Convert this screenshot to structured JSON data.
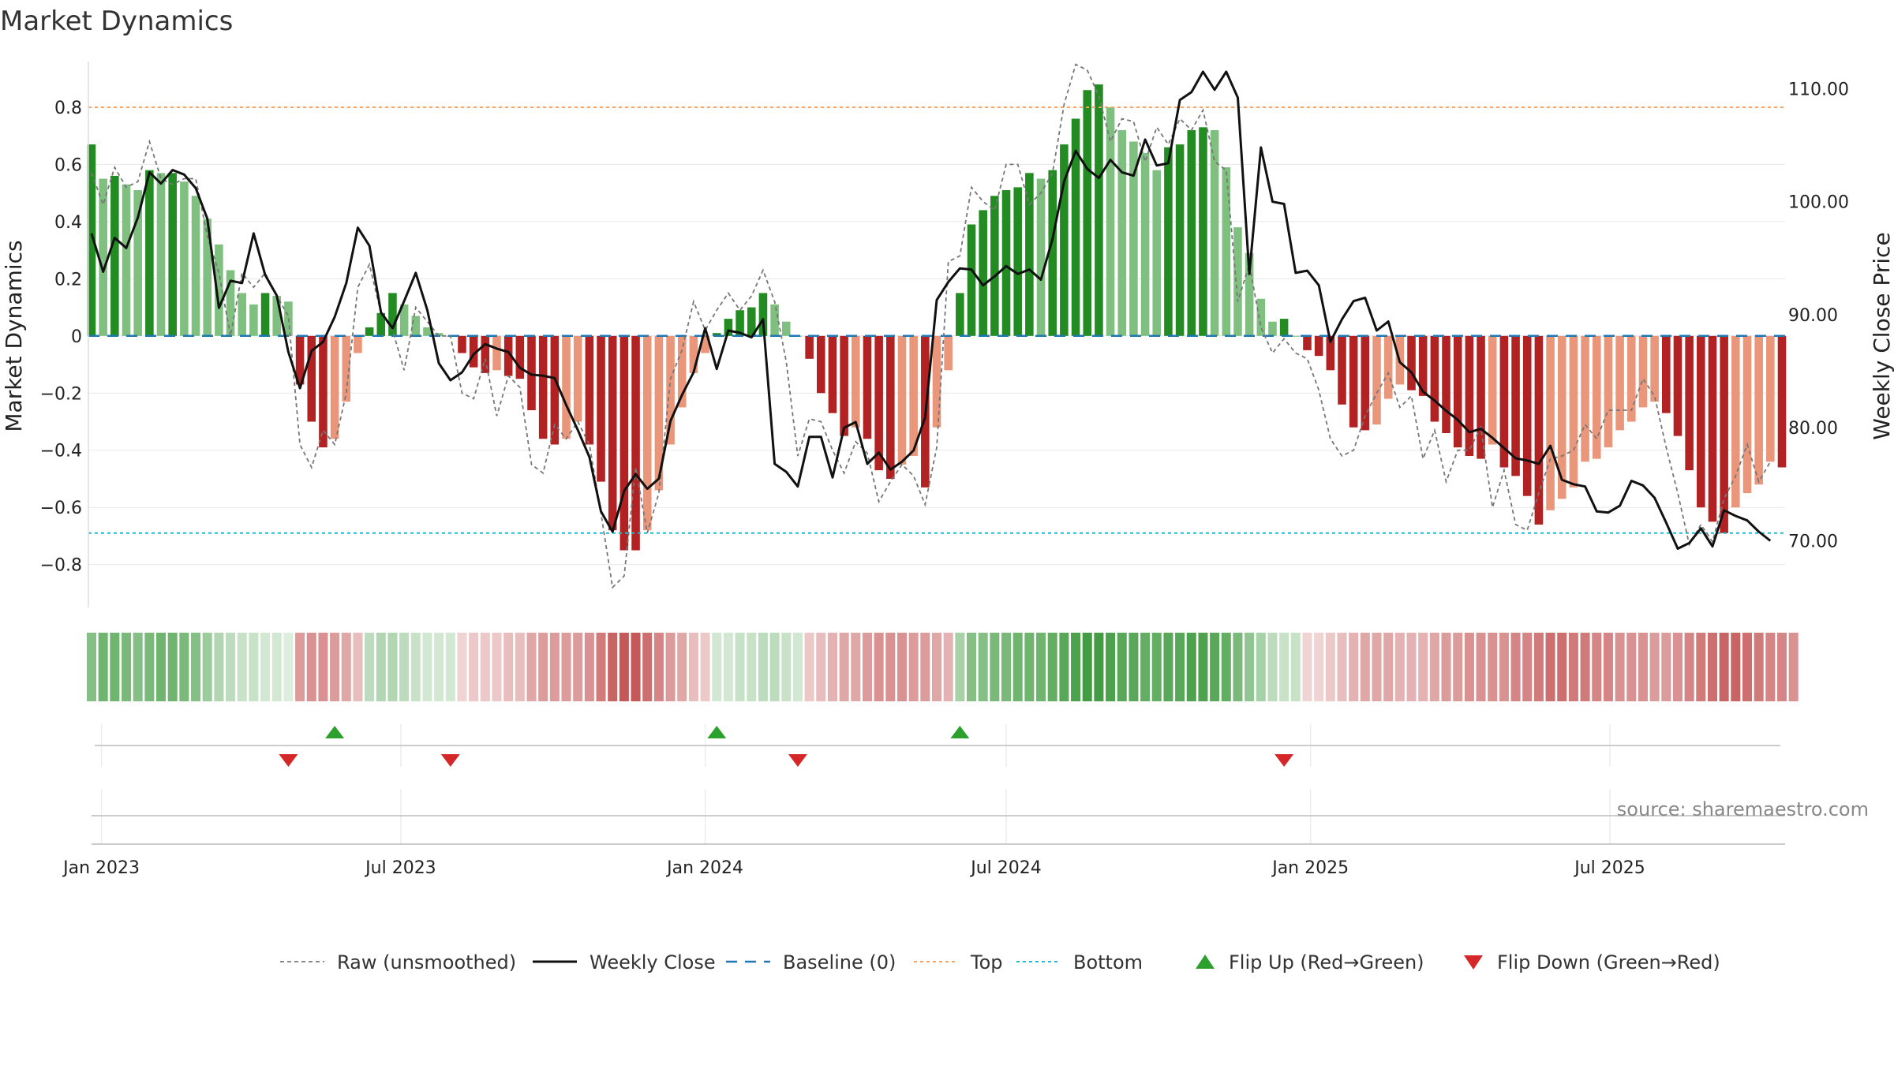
{
  "title": "Market Dynamics",
  "source": "source: sharemaestro.com",
  "colors": {
    "strong_green": "#228b22",
    "light_green": "#7fbf7f",
    "strong_red": "#b22222",
    "light_red": "#e9967a",
    "close_line": "#111111",
    "raw_line": "#777777",
    "baseline": "#1f77b4",
    "top": "#f4a460",
    "bottom": "#17becf",
    "flip_up": "#2ca02c",
    "flip_down": "#d62728"
  },
  "legend": [
    {
      "key": "raw",
      "label": "Raw (unsmoothed)",
      "icon": "dotted-line"
    },
    {
      "key": "close",
      "label": "Weekly Close",
      "icon": "solid-line"
    },
    {
      "key": "baseline",
      "label": "Baseline (0)",
      "icon": "dashed-line"
    },
    {
      "key": "top",
      "label": "Top",
      "icon": "dotted-line"
    },
    {
      "key": "bottom",
      "label": "Bottom",
      "icon": "dotted-line"
    },
    {
      "key": "flip_up",
      "label": "Flip Up (Red→Green)",
      "icon": "triangle-up-icon"
    },
    {
      "key": "flip_down",
      "label": "Flip Down (Green→Red)",
      "icon": "triangle-down-icon"
    }
  ],
  "chart_data": {
    "type": "bar",
    "title": "Market Dynamics",
    "ylabel": "Market Dynamics",
    "y2label": "Weekly Close Price",
    "ylim": [
      -0.95,
      0.96
    ],
    "y2lim": [
      64.1,
      112.4
    ],
    "yticks": [
      -0.8,
      -0.6,
      -0.4,
      -0.2,
      0,
      0.2,
      0.4,
      0.6,
      0.8
    ],
    "ytick_labels": [
      "−0.8",
      "−0.6",
      "−0.4",
      "−0.2",
      "0",
      "0.2",
      "0.4",
      "0.6",
      "0.8"
    ],
    "y2ticks": [
      70,
      80,
      90,
      100,
      110
    ],
    "y2tick_labels": [
      "70.00",
      "80.00",
      "90.00",
      "100.00",
      "110.00"
    ],
    "xticks": [
      "2023-01-01",
      "2023-07-01",
      "2024-01-01",
      "2024-07-01",
      "2025-01-01",
      "2025-07-01"
    ],
    "xtick_labels": [
      "Jan 2023",
      "Jul 2023",
      "Jan 2024",
      "Jul 2024",
      "Jan 2025",
      "Jul 2025"
    ],
    "x_start": "2022-12-26",
    "weeks": 147,
    "top_line": 0.8,
    "bottom_line": -0.69,
    "baseline": 0,
    "grid": true,
    "legend_position": "bottom",
    "momentum": [
      0.67,
      0.55,
      0.56,
      0.53,
      0.51,
      0.58,
      0.57,
      0.57,
      0.54,
      0.49,
      0.41,
      0.32,
      0.23,
      0.15,
      0.11,
      0.15,
      0.14,
      0.12,
      -0.17,
      -0.3,
      -0.39,
      -0.36,
      -0.23,
      -0.06,
      0.03,
      0.08,
      0.15,
      0.11,
      0.07,
      0.03,
      0.01,
      0.0,
      -0.06,
      -0.11,
      -0.13,
      -0.12,
      -0.14,
      -0.15,
      -0.26,
      -0.36,
      -0.38,
      -0.36,
      -0.3,
      -0.38,
      -0.51,
      -0.68,
      -0.75,
      -0.75,
      -0.68,
      -0.54,
      -0.38,
      -0.25,
      -0.13,
      -0.06,
      0.01,
      0.06,
      0.09,
      0.1,
      0.15,
      0.11,
      0.05,
      0.0,
      -0.08,
      -0.2,
      -0.27,
      -0.35,
      -0.32,
      -0.36,
      -0.47,
      -0.5,
      -0.45,
      -0.42,
      -0.53,
      -0.32,
      -0.12,
      0.15,
      0.39,
      0.44,
      0.49,
      0.51,
      0.52,
      0.57,
      0.55,
      0.58,
      0.67,
      0.76,
      0.86,
      0.88,
      0.8,
      0.72,
      0.68,
      0.64,
      0.58,
      0.66,
      0.67,
      0.72,
      0.73,
      0.72,
      0.59,
      0.38,
      0.29,
      0.13,
      0.05,
      0.06,
      0.0,
      -0.05,
      -0.07,
      -0.12,
      -0.24,
      -0.32,
      -0.33,
      -0.31,
      -0.22,
      -0.17,
      -0.19,
      -0.21,
      -0.3,
      -0.34,
      -0.39,
      -0.42,
      -0.43,
      -0.38,
      -0.46,
      -0.49,
      -0.56,
      -0.66,
      -0.61,
      -0.57,
      -0.53,
      -0.44,
      -0.43,
      -0.39,
      -0.33,
      -0.3,
      -0.25,
      -0.23,
      -0.27,
      -0.35,
      -0.47,
      -0.6,
      -0.65,
      -0.69,
      -0.6,
      -0.55,
      -0.52,
      -0.44,
      -0.46
    ],
    "raw": [
      0.57,
      0.46,
      0.59,
      0.52,
      0.54,
      0.68,
      0.55,
      0.53,
      0.55,
      0.55,
      0.35,
      0.22,
      0.0,
      0.22,
      0.17,
      0.22,
      0.14,
      0.07,
      -0.38,
      -0.46,
      -0.33,
      -0.38,
      -0.2,
      0.17,
      0.25,
      0.08,
      0.02,
      -0.12,
      0.1,
      0.05,
      0.0,
      0.0,
      -0.2,
      -0.22,
      -0.08,
      -0.28,
      -0.14,
      -0.18,
      -0.45,
      -0.48,
      -0.31,
      -0.36,
      -0.3,
      -0.38,
      -0.62,
      -0.88,
      -0.84,
      -0.46,
      -0.69,
      -0.55,
      -0.15,
      -0.05,
      0.12,
      0.02,
      0.09,
      0.15,
      0.09,
      0.14,
      0.23,
      0.12,
      -0.09,
      -0.42,
      -0.29,
      -0.3,
      -0.4,
      -0.48,
      -0.37,
      -0.41,
      -0.58,
      -0.51,
      -0.45,
      -0.49,
      -0.59,
      -0.39,
      0.26,
      0.28,
      0.52,
      0.47,
      0.44,
      0.6,
      0.6,
      0.46,
      0.5,
      0.57,
      0.81,
      0.95,
      0.93,
      0.84,
      0.68,
      0.76,
      0.75,
      0.61,
      0.73,
      0.67,
      0.76,
      0.72,
      0.79,
      0.61,
      0.58,
      0.12,
      0.25,
      0.03,
      -0.06,
      -0.01,
      -0.06,
      -0.08,
      -0.19,
      -0.36,
      -0.42,
      -0.4,
      -0.28,
      -0.2,
      -0.13,
      -0.25,
      -0.21,
      -0.43,
      -0.33,
      -0.51,
      -0.4,
      -0.4,
      -0.32,
      -0.6,
      -0.47,
      -0.66,
      -0.68,
      -0.55,
      -0.43,
      -0.42,
      -0.4,
      -0.31,
      -0.36,
      -0.26,
      -0.26,
      -0.26,
      -0.15,
      -0.21,
      -0.39,
      -0.55,
      -0.73,
      -0.66,
      -0.72,
      -0.57,
      -0.49,
      -0.38,
      -0.51,
      -0.44
    ],
    "close": [
      97.2,
      93.8,
      96.8,
      95.9,
      98.6,
      102.6,
      101.6,
      102.8,
      102.4,
      101.2,
      98.5,
      90.6,
      93.0,
      92.8,
      97.2,
      93.5,
      91.7,
      86.7,
      83.5,
      86.8,
      87.6,
      89.8,
      92.8,
      97.7,
      96.1,
      90.2,
      88.8,
      91.2,
      93.7,
      90.4,
      85.7,
      84.2,
      84.9,
      86.5,
      87.4,
      87.0,
      86.7,
      85.3,
      84.7,
      84.6,
      84.4,
      82.0,
      79.8,
      77.4,
      72.6,
      70.8,
      74.4,
      75.9,
      74.6,
      75.5,
      80.6,
      82.9,
      84.9,
      88.8,
      85.2,
      88.6,
      88.4,
      88.0,
      89.6,
      76.8,
      76.1,
      74.8,
      79.2,
      79.2,
      75.6,
      80.0,
      80.5,
      76.8,
      77.8,
      76.3,
      77.0,
      78.0,
      80.9,
      91.3,
      92.9,
      94.1,
      94.0,
      92.6,
      93.4,
      94.3,
      93.6,
      94.0,
      93.1,
      96.7,
      101.8,
      104.5,
      102.9,
      102.1,
      103.7,
      102.6,
      102.3,
      105.5,
      103.2,
      103.4,
      109.0,
      109.7,
      111.5,
      109.9,
      111.5,
      109.2,
      93.6,
      104.8,
      100.0,
      99.8,
      93.7,
      93.9,
      92.6,
      87.6,
      89.6,
      91.2,
      91.5,
      88.6,
      89.4,
      85.8,
      84.9,
      83.2,
      82.4,
      81.5,
      80.7,
      79.6,
      79.9,
      79.1,
      78.2,
      77.3,
      77.1,
      76.8,
      78.4,
      75.4,
      75.0,
      74.8,
      72.6,
      72.5,
      73.1,
      75.3,
      74.9,
      73.8,
      71.6,
      69.3,
      69.8,
      71.1,
      69.5,
      72.7,
      72.2,
      71.8,
      70.8,
      70.0
    ]
  },
  "regime_strip_intensity": [
    0.55,
    0.65,
    0.65,
    0.6,
    0.55,
    0.6,
    0.65,
    0.65,
    0.6,
    0.55,
    0.45,
    0.35,
    0.3,
    0.25,
    0.25,
    0.2,
    0.2,
    0.15,
    0.45,
    0.5,
    0.5,
    0.45,
    0.4,
    0.3,
    0.3,
    0.35,
    0.35,
    0.3,
    0.25,
    0.2,
    0.2,
    0.2,
    0.2,
    0.25,
    0.25,
    0.25,
    0.3,
    0.3,
    0.4,
    0.45,
    0.45,
    0.45,
    0.45,
    0.5,
    0.6,
    0.7,
    0.75,
    0.75,
    0.65,
    0.55,
    0.45,
    0.4,
    0.3,
    0.25,
    0.2,
    0.2,
    0.25,
    0.25,
    0.3,
    0.3,
    0.25,
    0.2,
    0.25,
    0.3,
    0.35,
    0.4,
    0.4,
    0.45,
    0.5,
    0.5,
    0.5,
    0.45,
    0.45,
    0.4,
    0.35,
    0.4,
    0.55,
    0.55,
    0.6,
    0.6,
    0.65,
    0.65,
    0.65,
    0.7,
    0.75,
    0.8,
    0.85,
    0.85,
    0.8,
    0.75,
    0.75,
    0.7,
    0.7,
    0.75,
    0.75,
    0.8,
    0.8,
    0.75,
    0.7,
    0.6,
    0.5,
    0.4,
    0.3,
    0.25,
    0.25,
    0.2,
    0.2,
    0.25,
    0.3,
    0.35,
    0.4,
    0.4,
    0.4,
    0.35,
    0.35,
    0.35,
    0.4,
    0.45,
    0.45,
    0.5,
    0.5,
    0.5,
    0.5,
    0.55,
    0.55,
    0.6,
    0.65,
    0.65,
    0.6,
    0.6,
    0.55,
    0.55,
    0.5,
    0.5,
    0.5,
    0.45,
    0.45,
    0.5,
    0.55,
    0.6,
    0.65,
    0.7,
    0.7,
    0.65,
    0.6,
    0.55,
    0.55,
    0.5
  ],
  "flips_up": [
    21,
    54,
    75
  ],
  "flips_down": [
    17,
    31,
    61,
    103
  ]
}
